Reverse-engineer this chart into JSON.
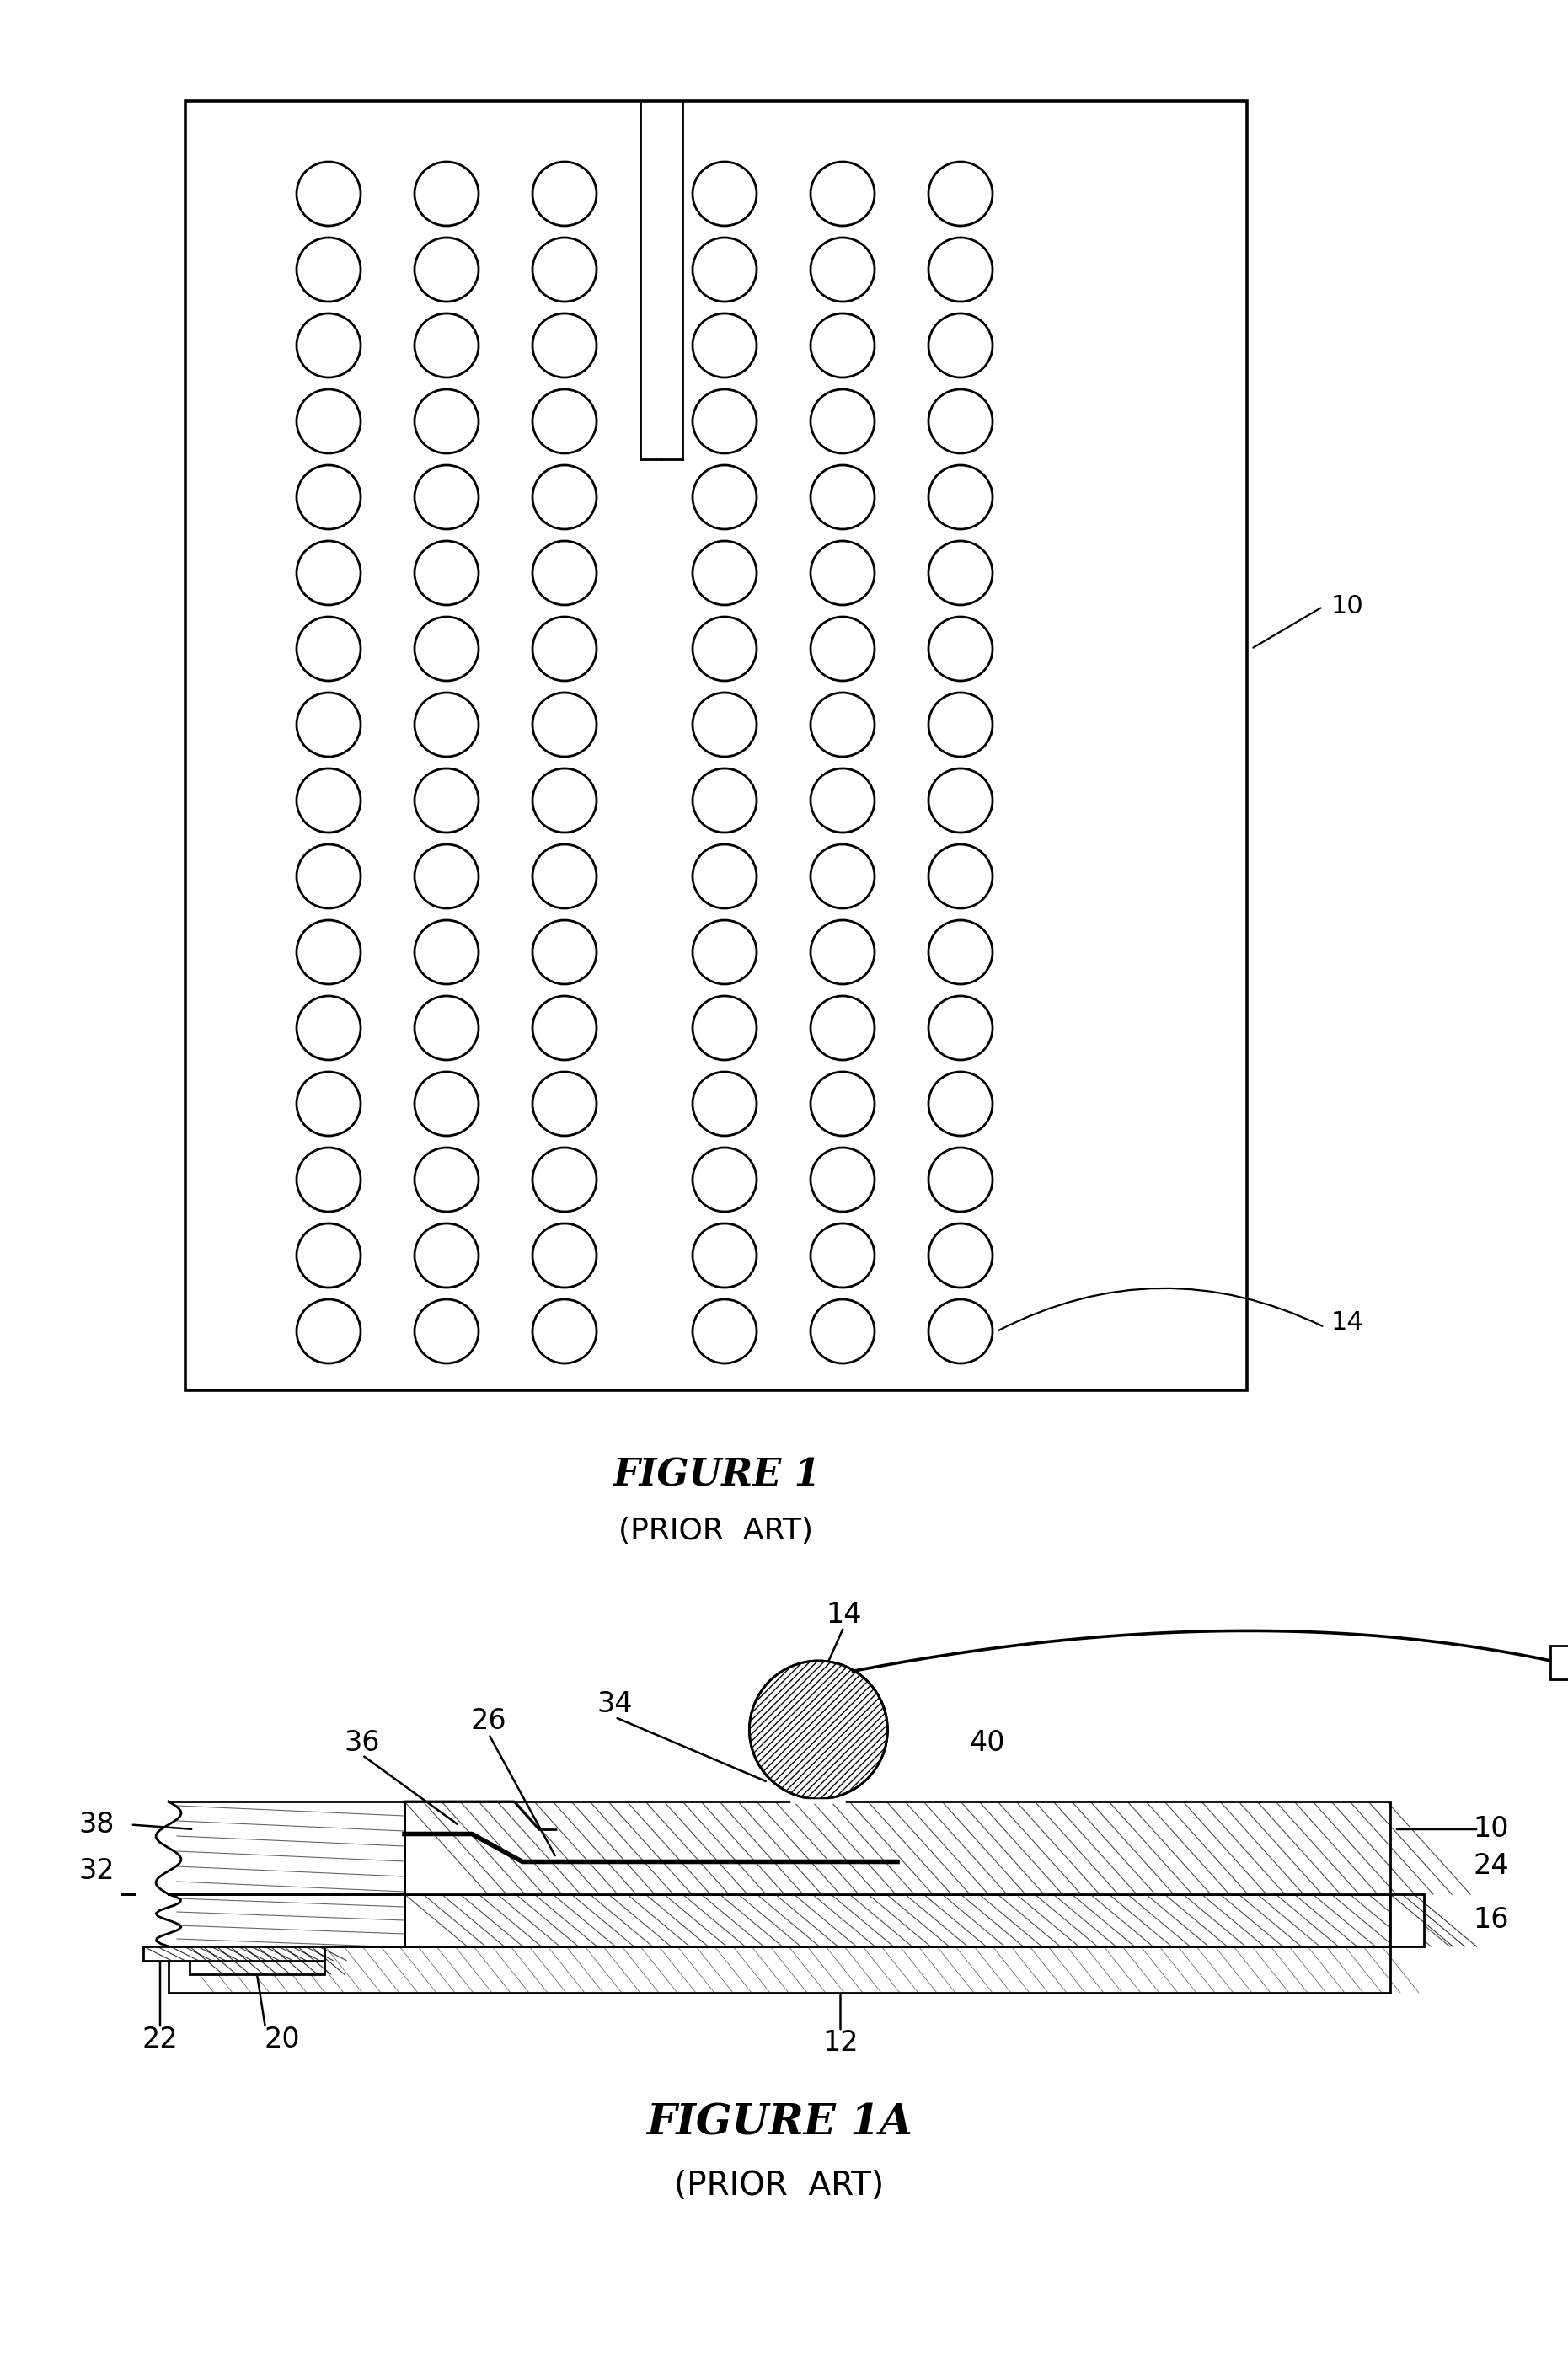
{
  "fig_width": 18.61,
  "fig_height": 28.02,
  "bg_color": "#ffffff",
  "fig1_title": "FIGURE 1",
  "fig1_subtitle": "(PRIOR  ART)",
  "fig1a_title": "FIGURE 1A",
  "fig1a_subtitle": "(PRIOR  ART)"
}
